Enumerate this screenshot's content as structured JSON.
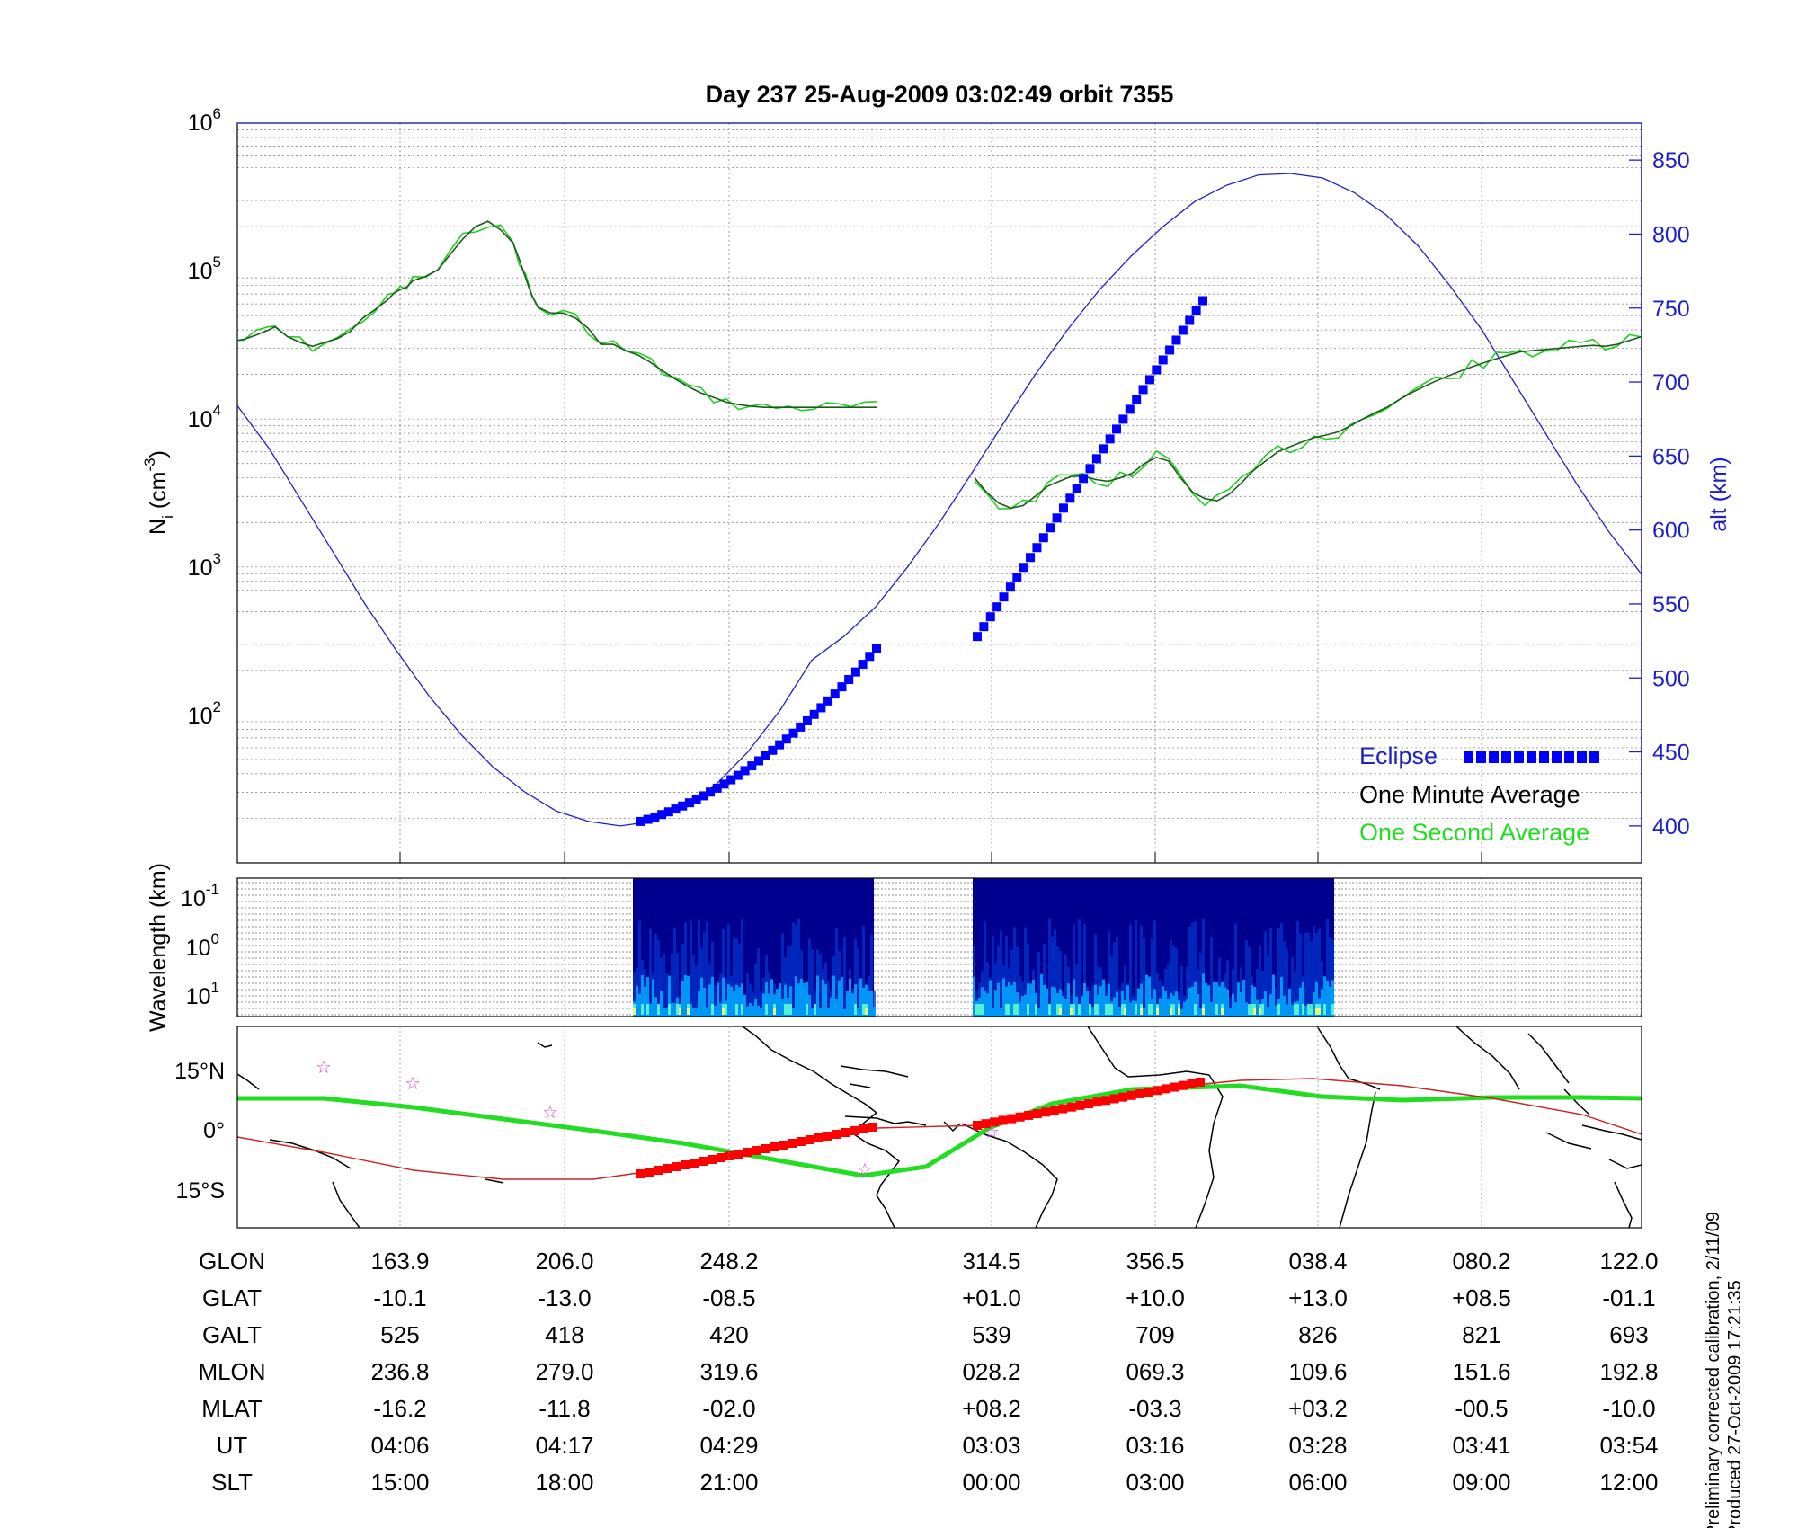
{
  "chart_data": [
    {
      "type": "line",
      "title": "Day 237  25-Aug-2009 03:02:49   orbit 7355",
      "ylabel_left": {
        "base": "N",
        "sub": "i",
        "unit_open": " (cm",
        "unit_sup": "-3",
        "unit_close": ")"
      },
      "ylabel_right": "alt (km)",
      "yscale_left": "log",
      "ylim_left": [
        10,
        1000000
      ],
      "yticks_left": [
        {
          "base": "10",
          "exp": "2",
          "value": 100
        },
        {
          "base": "10",
          "exp": "3",
          "value": 1000
        },
        {
          "base": "10",
          "exp": "4",
          "value": 10000
        },
        {
          "base": "10",
          "exp": "5",
          "value": 100000
        },
        {
          "base": "10",
          "exp": "6",
          "value": 1000000
        }
      ],
      "ylim_right": [
        375,
        875
      ],
      "yticks_right": [
        "400",
        "450",
        "500",
        "550",
        "600",
        "650",
        "700",
        "750",
        "800",
        "850"
      ],
      "grid": true,
      "legend_position": "bottom-right",
      "legend": [
        {
          "label": "Eclipse",
          "color": "#0000ff"
        },
        {
          "label": "One Minute Average",
          "color": "#000000"
        },
        {
          "label": "One Second Average",
          "color": "#00ff00"
        }
      ],
      "colors": {
        "altitude": "#1f1fc8",
        "eclipse": "#0000ff",
        "minute_avg": "#1a5c1a",
        "second_avg": "#22cc22",
        "axis_right": "#1f1fc8"
      },
      "series": [
        {
          "name": "One Minute Average",
          "pass": 1,
          "x": [
            0,
            0.1,
            0.3,
            0.5,
            0.6,
            0.8,
            1.0,
            1.2,
            1.4,
            1.6,
            1.8,
            2.0,
            2.2,
            2.4,
            2.5,
            2.6,
            2.7,
            2.8,
            3.0,
            3.2,
            3.4,
            3.6,
            3.8,
            4.0,
            4.2,
            4.4,
            4.5,
            4.6,
            4.7,
            4.8,
            5.0,
            5.2,
            5.4,
            5.6,
            5.8,
            6.0,
            6.2,
            6.4,
            6.6,
            6.8,
            7.0,
            7.2,
            7.4,
            7.6,
            7.8,
            8.0,
            8.2,
            8.4,
            8.6,
            8.8,
            9.0,
            9.2,
            9.4,
            9.6,
            9.8,
            10.0,
            10.2
          ],
          "y": [
            34000,
            34500,
            37000,
            40000,
            42000,
            36000,
            33000,
            31000,
            33000,
            35000,
            39000,
            48000,
            55000,
            64000,
            71000,
            75000,
            78000,
            86000,
            92000,
            102000,
            130000,
            165000,
            200000,
            217000,
            190000,
            155000,
            120000,
            90000,
            68000,
            57000,
            52000,
            52000,
            48000,
            41000,
            32000,
            32000,
            29000,
            27000,
            24000,
            21000,
            18500,
            16500,
            15000,
            14000,
            13000,
            12500,
            12200,
            12000,
            12000,
            12000,
            12000,
            12000,
            12000,
            12000,
            12000,
            12000,
            12000
          ]
        },
        {
          "name": "One Minute Average",
          "pass": 2,
          "x": [
            0,
            0.2,
            0.4,
            0.6,
            0.8,
            1.0,
            1.2,
            1.4,
            1.6,
            1.8,
            2.0,
            2.2,
            2.4,
            2.6,
            2.8,
            3.0,
            3.2,
            3.4,
            3.6,
            3.8,
            4.0,
            4.2,
            4.4,
            4.6,
            4.8,
            5.0,
            5.2,
            5.4,
            5.6,
            5.8,
            6.0,
            6.2,
            6.4,
            6.6,
            6.8,
            7.0,
            7.2,
            7.4,
            7.6,
            7.8,
            8.0,
            8.2,
            8.4,
            8.6,
            8.8,
            9.0,
            9.2,
            9.4,
            9.6,
            9.8,
            10.0,
            10.2,
            10.4,
            10.6,
            10.8,
            11.0
          ],
          "y": [
            4000,
            3200,
            2700,
            2500,
            2600,
            3000,
            3500,
            3800,
            4100,
            4100,
            3900,
            3800,
            4000,
            4300,
            5000,
            5500,
            5200,
            4000,
            3200,
            2900,
            2800,
            3100,
            3700,
            4500,
            5200,
            6000,
            6500,
            7000,
            7500,
            7800,
            8200,
            9000,
            10000,
            11000,
            12000,
            13500,
            15000,
            16500,
            18000,
            19500,
            21000,
            22500,
            24000,
            25500,
            27000,
            28500,
            29000,
            29500,
            30000,
            30500,
            31000,
            31500,
            31000,
            32000,
            34000,
            36000
          ]
        },
        {
          "name": "Altitude",
          "axis": "right",
          "x": [
            0,
            0.5,
            1.0,
            1.5,
            2.0,
            2.5,
            3.0,
            3.5,
            4.0,
            4.5,
            5.0,
            5.5,
            6.0,
            6.5,
            7.0,
            7.5,
            8.0,
            8.5,
            9.0,
            9.5,
            10.0,
            10.5,
            11.0,
            11.5,
            12.0,
            12.5,
            13.0,
            13.5,
            14.0,
            14.5,
            15.0,
            15.5,
            16.0,
            16.5,
            17.0,
            17.5,
            18.0,
            18.5,
            19.0,
            19.5,
            20.0,
            20.5,
            21.0,
            21.5,
            22.0
          ],
          "y": [
            684,
            655,
            620,
            585,
            550,
            518,
            488,
            462,
            440,
            423,
            410,
            403,
            400,
            403,
            412,
            428,
            450,
            478,
            512,
            528,
            548,
            575,
            605,
            638,
            672,
            705,
            735,
            762,
            785,
            805,
            822,
            833,
            840,
            841,
            838,
            828,
            813,
            792,
            765,
            735,
            700,
            665,
            630,
            598,
            570
          ]
        }
      ],
      "eclipse_intervals": [
        {
          "start_alt": 403,
          "end_alt": 520
        },
        {
          "start_alt": 528,
          "end_alt": 755
        }
      ]
    },
    {
      "type": "heatmap",
      "ylabel": "Wavelength (km)",
      "yscale": "log",
      "yticks": [
        {
          "base": "10",
          "exp": "-1"
        },
        {
          "base": "10",
          "exp": "0"
        },
        {
          "base": "10",
          "exp": "1"
        }
      ],
      "colormap": [
        "#00008f",
        "#0033cc",
        "#00aaff",
        "#66ffcc",
        "#ffff66"
      ],
      "segments": [
        "pass-1",
        "pass-2"
      ]
    },
    {
      "type": "map",
      "ylabel_ticks": [
        "15°N",
        "0°",
        "15°S"
      ],
      "tracks": [
        {
          "name": "magnetic equator",
          "color": "#00ff00"
        },
        {
          "name": "orbit track",
          "color": "#cc2222"
        },
        {
          "name": "eclipse segment",
          "color": "#ff0000"
        }
      ],
      "markers": {
        "type": "star",
        "color": "#cc44cc"
      }
    }
  ],
  "table": {
    "labels": [
      "GLON",
      "GLAT",
      "GALT",
      "MLON",
      "MLAT",
      "UT",
      "SLT"
    ],
    "columns": [
      {
        "GLON": "163.9",
        "GLAT": "-10.1",
        "GALT": "525",
        "MLON": "236.8",
        "MLAT": "-16.2",
        "UT": "04:06",
        "SLT": "15:00"
      },
      {
        "GLON": "206.0",
        "GLAT": "-13.0",
        "GALT": "418",
        "MLON": "279.0",
        "MLAT": "-11.8",
        "UT": "04:17",
        "SLT": "18:00"
      },
      {
        "GLON": "248.2",
        "GLAT": "-08.5",
        "GALT": "420",
        "MLON": "319.6",
        "MLAT": "-02.0",
        "UT": "04:29",
        "SLT": "21:00"
      },
      {
        "GLON": "314.5",
        "GLAT": "+01.0",
        "GALT": "539",
        "MLON": "028.2",
        "MLAT": "+08.2",
        "UT": "03:03",
        "SLT": "00:00"
      },
      {
        "GLON": "356.5",
        "GLAT": "+10.0",
        "GALT": "709",
        "MLON": "069.3",
        "MLAT": "-03.3",
        "UT": "03:16",
        "SLT": "03:00"
      },
      {
        "GLON": "038.4",
        "GLAT": "+13.0",
        "GALT": "826",
        "MLON": "109.6",
        "MLAT": "+03.2",
        "UT": "03:28",
        "SLT": "06:00"
      },
      {
        "GLON": "080.2",
        "GLAT": "+08.5",
        "GALT": "821",
        "MLON": "151.6",
        "MLAT": "-00.5",
        "UT": "03:41",
        "SLT": "09:00"
      },
      {
        "GLON": "122.0",
        "GLAT": "-01.1",
        "GALT": "693",
        "MLON": "192.8",
        "MLAT": "-10.0",
        "UT": "03:54",
        "SLT": "12:00"
      }
    ]
  },
  "calibration": {
    "line1": "Preliminary corrected calibration, 2/11/09",
    "line2": "Produced 27-Oct-2009 17:21:35"
  }
}
